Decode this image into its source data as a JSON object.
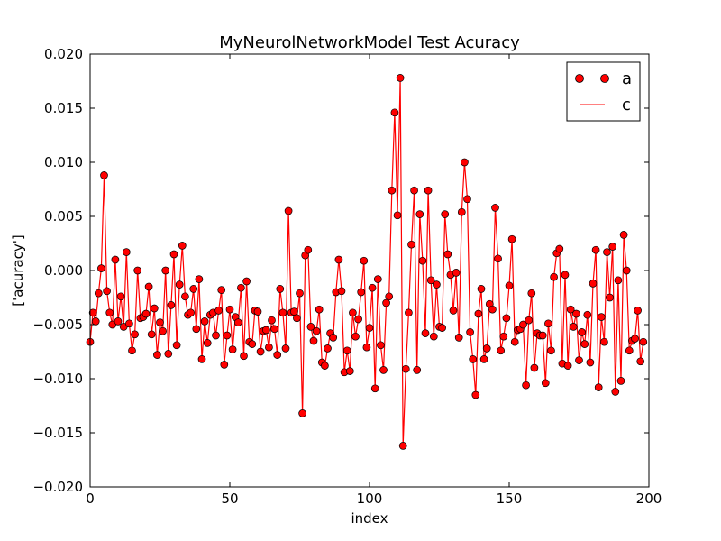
{
  "chart_data": {
    "type": "line",
    "title": "MyNeurolNetworkModel Test Acuracy",
    "xlabel": "index",
    "ylabel": "['acuracy']",
    "xlim": [
      0,
      200
    ],
    "ylim": [
      -0.02,
      0.02
    ],
    "grid": false,
    "legend_placement": "top-right",
    "x_ticks": [
      0,
      50,
      100,
      150,
      200
    ],
    "x_tick_labels": [
      "0",
      "50",
      "100",
      "150",
      "200"
    ],
    "y_ticks": [
      -0.02,
      -0.015,
      -0.01,
      -0.005,
      0,
      0.005,
      0.01,
      0.015,
      0.02
    ],
    "y_tick_labels": [
      "−0.020",
      "−0.015",
      "−0.010",
      "−0.005",
      "0.000",
      "0.005",
      "0.010",
      "0.015",
      "0.020"
    ],
    "series": [
      {
        "name": "a",
        "style": "markers",
        "color": "#ff0000",
        "values": [
          -0.0066,
          -0.0039,
          -0.0047,
          -0.0021,
          0.0002,
          0.0088,
          -0.0019,
          -0.0039,
          -0.005,
          0.001,
          -0.0047,
          -0.0024,
          -0.0052,
          0.0017,
          -0.0049,
          -0.0074,
          -0.0059,
          0.0,
          -0.0044,
          -0.0043,
          -0.004,
          -0.0015,
          -0.0059,
          -0.0035,
          -0.0078,
          -0.0048,
          -0.0056,
          0.0,
          -0.0077,
          -0.0032,
          0.0015,
          -0.0069,
          -0.0013,
          0.0023,
          -0.0024,
          -0.0041,
          -0.0039,
          -0.0017,
          -0.0054,
          -0.0008,
          -0.0082,
          -0.0047,
          -0.0067,
          -0.0041,
          -0.0039,
          -0.006,
          -0.0037,
          -0.0018,
          -0.0087,
          -0.006,
          -0.0036,
          -0.0073,
          -0.0043,
          -0.0048,
          -0.0016,
          -0.0079,
          -0.001,
          -0.0066,
          -0.0068,
          -0.0037,
          -0.0038,
          -0.0075,
          -0.0056,
          -0.0055,
          -0.0071,
          -0.0046,
          -0.0054,
          -0.0078,
          -0.0017,
          -0.0039,
          -0.0072,
          0.0055,
          -0.0039,
          -0.0038,
          -0.0044,
          -0.0021,
          -0.0132,
          0.0014,
          0.0019,
          -0.0052,
          -0.0065,
          -0.0056,
          -0.0036,
          -0.0085,
          -0.0088,
          -0.0072,
          -0.0058,
          -0.0062,
          -0.002,
          0.001,
          -0.0019,
          -0.0094,
          -0.0074,
          -0.0093,
          -0.0039,
          -0.0061,
          -0.0045,
          -0.002,
          0.0009,
          -0.0071,
          -0.0053,
          -0.0016,
          -0.0109,
          -0.0008,
          -0.0069,
          -0.0092,
          -0.003,
          -0.0024,
          0.0074,
          0.0146,
          0.0051,
          0.0178,
          -0.0162,
          -0.0091,
          -0.0039,
          0.0024,
          0.0074,
          -0.0092,
          0.0052,
          0.0009,
          -0.0058,
          0.0074,
          -0.0009,
          -0.0061,
          -0.0013,
          -0.0052,
          -0.0053,
          0.0052,
          0.0015,
          -0.0004,
          -0.0037,
          -0.0002,
          -0.0062,
          0.0054,
          0.01,
          0.0066,
          -0.0057,
          -0.0082,
          -0.0115,
          -0.004,
          -0.0017,
          -0.0082,
          -0.0072,
          -0.0031,
          -0.0036,
          0.0058,
          0.0011,
          -0.0074,
          -0.0061,
          -0.0044,
          -0.0014,
          0.0029,
          -0.0066,
          -0.0055,
          -0.0054,
          -0.005,
          -0.0106,
          -0.0046,
          -0.0021,
          -0.009,
          -0.0058,
          -0.006,
          -0.006,
          -0.0104,
          -0.0049,
          -0.0074,
          -0.0006,
          0.0016,
          0.002,
          -0.0086,
          -0.0004,
          -0.0088,
          -0.0036,
          -0.0052,
          -0.004,
          -0.0083,
          -0.0057,
          -0.0068,
          -0.0041,
          -0.0085,
          -0.0012,
          0.0019,
          -0.0108,
          -0.0043,
          -0.0066,
          0.0017,
          -0.0025,
          0.0022,
          -0.0112,
          -0.0009,
          -0.0102,
          0.0033,
          0.0,
          -0.0074,
          -0.0065,
          -0.0063,
          -0.0037,
          -0.0084,
          -0.0066
        ]
      },
      {
        "name": "c",
        "style": "line",
        "color": "#ff0000",
        "same_values_as": "a"
      }
    ]
  }
}
